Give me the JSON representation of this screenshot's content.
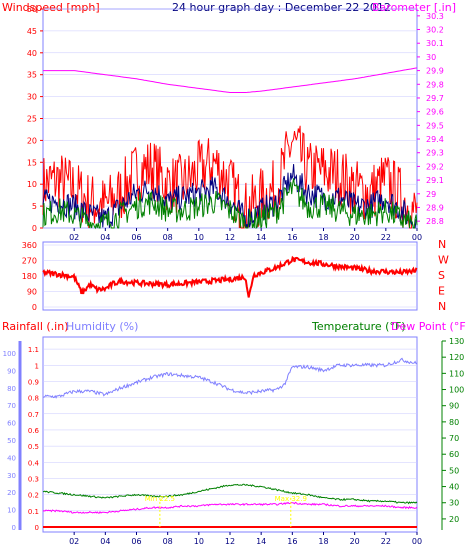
{
  "chart_data": [
    {
      "type": "line",
      "title": "24 hour graph day : December 22 2012",
      "left_axis_label": "Windspeed [mph]",
      "right_axis_label": "Barometer [.in]",
      "ylim_left": [
        0,
        50
      ],
      "left_ticks": [
        0,
        5,
        10,
        15,
        20,
        25,
        30,
        35,
        40,
        45,
        50
      ],
      "ylim_right": [
        28.75,
        30.35
      ],
      "right_ticks": [
        "28.8",
        "28.9",
        "29",
        "29.1",
        "29.2",
        "29.3",
        "29.4",
        "29.5",
        "29.6",
        "29.7",
        "29.8",
        "29.9",
        "30",
        "30.1",
        "30.2",
        "30.3"
      ],
      "xlim": [
        0,
        24
      ],
      "x_tick_labels": [
        "02",
        "04",
        "06",
        "08",
        "10",
        "12",
        "14",
        "16",
        "18",
        "20",
        "22",
        "00"
      ],
      "series": [
        {
          "color": "#ff0000",
          "x": [
            0,
            1,
            2,
            3,
            4,
            5,
            6,
            7,
            8,
            9,
            10,
            11,
            12,
            13,
            14,
            15,
            16,
            17,
            18,
            19,
            20,
            21,
            22,
            23,
            24
          ],
          "values": [
            10,
            11,
            9,
            6,
            5,
            8,
            13,
            14,
            10,
            10,
            13,
            15,
            10,
            4,
            7,
            9,
            20,
            13,
            13,
            12,
            9,
            8,
            11,
            7,
            3
          ]
        },
        {
          "color": "#000080",
          "x": [
            0,
            1,
            2,
            3,
            4,
            5,
            6,
            7,
            8,
            9,
            10,
            11,
            12,
            13,
            14,
            15,
            16,
            17,
            18,
            19,
            20,
            21,
            22,
            23,
            24
          ],
          "values": [
            6,
            6,
            5,
            3,
            2,
            5,
            8,
            9,
            6,
            7,
            8,
            9,
            6,
            2,
            4,
            6,
            12,
            8,
            7,
            7,
            5,
            5,
            7,
            4,
            1
          ]
        },
        {
          "color": "#008000",
          "x": [
            0,
            1,
            2,
            3,
            4,
            5,
            6,
            7,
            8,
            9,
            10,
            11,
            12,
            13,
            14,
            15,
            16,
            17,
            18,
            19,
            20,
            21,
            22,
            23,
            24
          ],
          "values": [
            3,
            4,
            3,
            1,
            1,
            3,
            5,
            6,
            4,
            4,
            5,
            6,
            4,
            1,
            2,
            4,
            9,
            5,
            5,
            4,
            3,
            3,
            4,
            2,
            0
          ]
        },
        {
          "color": "#ff00ff",
          "axis": "right",
          "x": [
            0,
            2,
            4,
            6,
            8,
            10,
            12,
            13,
            14,
            16,
            18,
            20,
            22,
            24
          ],
          "values": [
            29.9,
            29.9,
            29.87,
            29.84,
            29.8,
            29.77,
            29.74,
            29.74,
            29.75,
            29.78,
            29.81,
            29.84,
            29.88,
            29.92
          ]
        }
      ]
    },
    {
      "type": "line",
      "ylim": [
        0,
        360
      ],
      "y_ticks": [
        0,
        90,
        180,
        270,
        360
      ],
      "right_labels": [
        "N",
        "W",
        "S",
        "E",
        "N"
      ],
      "xlim": [
        0,
        24
      ],
      "series": [
        {
          "color": "#ff0000",
          "x": [
            0,
            1,
            2,
            2.5,
            3,
            3.5,
            4,
            4.5,
            5,
            6,
            8,
            10,
            12,
            13,
            13.2,
            13.5,
            14,
            15,
            16,
            17,
            18,
            19,
            20,
            21,
            22,
            23,
            24
          ],
          "values": [
            200,
            190,
            175,
            80,
            130,
            100,
            105,
            135,
            150,
            140,
            130,
            145,
            160,
            175,
            50,
            185,
            200,
            230,
            275,
            260,
            250,
            235,
            225,
            210,
            205,
            200,
            210
          ]
        }
      ]
    },
    {
      "type": "line",
      "rainfall_label": "Rainfall (.in)",
      "humidity_label": "Humidity (%)",
      "temperature_label": "Temperature (°F)",
      "dewpoint_label": "Dew Point (°F)",
      "rain_ticks": [
        "0",
        "0.1",
        "0.2",
        "0.3",
        "0.4",
        "0.5",
        "0.6",
        "0.7",
        "0.8",
        "0.9",
        "1",
        "1.1"
      ],
      "humidity_ticks": [
        "0",
        "10",
        "20",
        "30",
        "40",
        "50",
        "60",
        "70",
        "80",
        "90",
        "100"
      ],
      "temperature_ticks": [
        "20",
        "30",
        "40",
        "50",
        "60",
        "70",
        "80",
        "90",
        "100",
        "110",
        "120",
        "130"
      ],
      "ylim_rain": [
        0,
        1.15
      ],
      "ylim_temp": [
        15,
        130
      ],
      "xlim": [
        0,
        24
      ],
      "x_tick_labels": [
        "02",
        "04",
        "06",
        "08",
        "10",
        "12",
        "14",
        "16",
        "18",
        "20",
        "22",
        "00"
      ],
      "series": [
        {
          "name": "Humidity (%)",
          "color": "#8080ff",
          "axis": "humidity",
          "x": [
            0,
            1,
            2,
            3,
            4,
            5,
            6,
            7,
            8,
            9,
            10,
            11,
            12,
            13,
            14,
            15,
            15.5,
            16,
            17,
            18,
            19,
            20,
            21,
            22,
            23,
            24
          ],
          "values": [
            75,
            75,
            78,
            78,
            76,
            80,
            83,
            86,
            88,
            87,
            86,
            83,
            79,
            77,
            78,
            79,
            82,
            92,
            92,
            90,
            93,
            93,
            93,
            93,
            96,
            94
          ]
        },
        {
          "name": "Temperature (°F)",
          "color": "#008000",
          "axis": "temperature",
          "x": [
            0,
            1,
            2,
            3,
            4,
            5,
            6,
            7,
            8,
            9,
            10,
            11,
            12,
            13,
            14,
            15,
            16,
            17,
            18,
            19,
            20,
            21,
            22,
            23,
            24
          ],
          "values": [
            37,
            36,
            35,
            34,
            33,
            34,
            35,
            34,
            34,
            35,
            37,
            39,
            41,
            41,
            40,
            38,
            36,
            35,
            33,
            32,
            32,
            31,
            31,
            30,
            30
          ]
        },
        {
          "name": "Dew Point (°F)",
          "color": "#ff00ff",
          "axis": "temperature",
          "x": [
            0,
            1,
            2,
            3,
            4,
            5,
            6,
            7,
            8,
            9,
            10,
            11,
            12,
            13,
            14,
            15,
            16,
            17,
            18,
            19,
            20,
            21,
            22,
            23,
            24
          ],
          "values": [
            25,
            25,
            24,
            24,
            24,
            25,
            26,
            27,
            27,
            28,
            28,
            29,
            29,
            29,
            29,
            29,
            30,
            29,
            29,
            28,
            28,
            28,
            28,
            27,
            27
          ]
        },
        {
          "name": "Rainfall (.in)",
          "color": "#ff0000",
          "axis": "rain",
          "x": [
            0,
            24
          ],
          "values": [
            0,
            0
          ]
        }
      ],
      "annotations": [
        {
          "x": 7.5,
          "y_temp": 33,
          "text": "Min 22.5"
        },
        {
          "x": 15.9,
          "y_temp": 33,
          "text": "Max 32.9"
        }
      ]
    }
  ]
}
